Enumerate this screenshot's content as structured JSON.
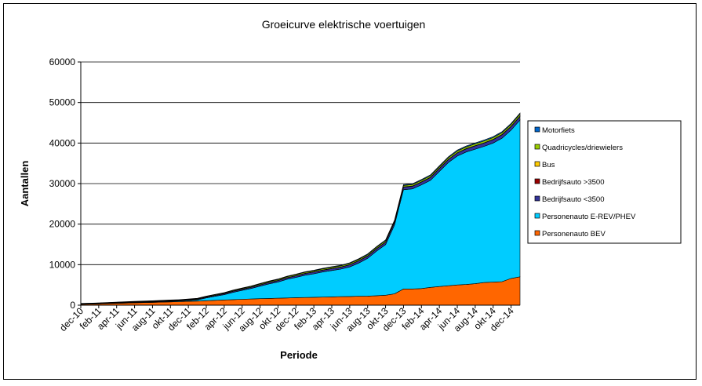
{
  "chart_data": {
    "type": "area",
    "stacked": true,
    "title": "Groeicurve elektrische voertuigen",
    "xlabel": "Periode",
    "ylabel": "Aantallen",
    "ylim": [
      0,
      60000
    ],
    "yticks": [
      0,
      10000,
      20000,
      30000,
      40000,
      50000,
      60000
    ],
    "grid": "horizontal",
    "legend_position": "right",
    "x_tick_labels": [
      "dec-10",
      "feb-11",
      "apr-11",
      "jun-11",
      "aug-11",
      "okt-11",
      "dec-11",
      "feb-12",
      "apr-12",
      "jun-12",
      "aug-12",
      "okt-12",
      "dec-12",
      "feb-13",
      "apr-13",
      "jun-13",
      "aug-13",
      "okt-13",
      "dec-13",
      "feb-14",
      "apr-14",
      "jun-14",
      "aug-14",
      "okt-14",
      "dec-14"
    ],
    "categories": [
      "dec-10",
      "jan-11",
      "feb-11",
      "mrt-11",
      "apr-11",
      "mei-11",
      "jun-11",
      "jul-11",
      "aug-11",
      "sep-11",
      "okt-11",
      "nov-11",
      "dec-11",
      "jan-12",
      "feb-12",
      "mrt-12",
      "apr-12",
      "mei-12",
      "jun-12",
      "jul-12",
      "aug-12",
      "sep-12",
      "okt-12",
      "nov-12",
      "dec-12",
      "jan-13",
      "feb-13",
      "mrt-13",
      "apr-13",
      "mei-13",
      "jun-13",
      "jul-13",
      "aug-13",
      "sep-13",
      "okt-13",
      "nov-13",
      "dec-13",
      "jan-14",
      "feb-14",
      "mrt-14",
      "apr-14",
      "mei-14",
      "jun-14",
      "jul-14",
      "aug-14",
      "sep-14",
      "okt-14",
      "nov-14",
      "dec-14",
      "jan-15"
    ],
    "series": [
      {
        "name": "Personenauto BEV",
        "color": "#ff6600",
        "values": [
          200,
          250,
          300,
          380,
          450,
          520,
          580,
          640,
          700,
          760,
          820,
          880,
          940,
          1000,
          1100,
          1200,
          1300,
          1380,
          1450,
          1520,
          1600,
          1660,
          1720,
          1780,
          1850,
          1900,
          1950,
          2000,
          2050,
          2100,
          2150,
          2200,
          2250,
          2350,
          2450,
          2800,
          4000,
          4000,
          4100,
          4400,
          4600,
          4800,
          5000,
          5100,
          5300,
          5600,
          5700,
          5800,
          6600,
          7000
        ]
      },
      {
        "name": "Personenauto E-REV/PHEV",
        "color": "#00ccff",
        "values": [
          50,
          50,
          60,
          60,
          70,
          80,
          90,
          100,
          110,
          120,
          130,
          150,
          200,
          300,
          700,
          1000,
          1300,
          1800,
          2200,
          2600,
          3100,
          3600,
          4000,
          4600,
          5000,
          5500,
          5800,
          6200,
          6500,
          6800,
          7300,
          8200,
          9300,
          11000,
          12500,
          17000,
          24500,
          24700,
          25600,
          26400,
          28400,
          30400,
          31800,
          32700,
          33200,
          33600,
          34300,
          35400,
          36600,
          38700
        ]
      },
      {
        "name": "Bedrijfsauto <3500",
        "color": "#333399",
        "values": [
          80,
          80,
          90,
          90,
          100,
          100,
          110,
          120,
          120,
          130,
          140,
          150,
          160,
          170,
          200,
          220,
          240,
          260,
          280,
          300,
          320,
          340,
          360,
          380,
          400,
          420,
          440,
          460,
          480,
          500,
          520,
          540,
          560,
          580,
          600,
          620,
          640,
          660,
          680,
          700,
          720,
          740,
          760,
          780,
          800,
          820,
          840,
          860,
          880,
          900
        ]
      },
      {
        "name": "Bedrijfsauto >3500",
        "color": "#990000",
        "values": [
          10,
          10,
          10,
          10,
          10,
          10,
          10,
          10,
          10,
          10,
          10,
          10,
          10,
          10,
          10,
          10,
          10,
          10,
          10,
          10,
          10,
          10,
          10,
          10,
          10,
          10,
          10,
          10,
          10,
          10,
          10,
          10,
          10,
          10,
          10,
          10,
          10,
          10,
          10,
          10,
          10,
          10,
          10,
          10,
          10,
          10,
          10,
          10,
          10,
          10
        ]
      },
      {
        "name": "Bus",
        "color": "#ffcc00",
        "values": [
          10,
          10,
          10,
          10,
          10,
          10,
          10,
          10,
          10,
          10,
          10,
          10,
          10,
          10,
          10,
          10,
          10,
          10,
          10,
          10,
          10,
          20,
          20,
          20,
          20,
          20,
          20,
          20,
          20,
          20,
          30,
          30,
          30,
          30,
          30,
          30,
          30,
          30,
          30,
          30,
          40,
          40,
          40,
          40,
          40,
          40,
          40,
          40,
          40,
          50
        ]
      },
      {
        "name": "Quadricycles/driewielers",
        "color": "#99cc00",
        "values": [
          60,
          60,
          70,
          70,
          80,
          80,
          90,
          90,
          100,
          100,
          110,
          110,
          120,
          130,
          140,
          150,
          160,
          170,
          180,
          190,
          200,
          210,
          220,
          230,
          240,
          250,
          260,
          270,
          280,
          290,
          300,
          310,
          320,
          330,
          340,
          350,
          360,
          370,
          380,
          390,
          400,
          410,
          420,
          430,
          440,
          450,
          460,
          470,
          480,
          500
        ]
      },
      {
        "name": "Motorfiets",
        "color": "#0066cc",
        "values": [
          40,
          40,
          40,
          50,
          50,
          50,
          60,
          60,
          60,
          70,
          70,
          70,
          80,
          80,
          90,
          90,
          100,
          100,
          110,
          110,
          120,
          120,
          130,
          130,
          140,
          140,
          150,
          150,
          160,
          160,
          170,
          170,
          180,
          180,
          190,
          190,
          200,
          200,
          210,
          210,
          220,
          220,
          230,
          230,
          240,
          240,
          250,
          250,
          260,
          260
        ]
      }
    ]
  }
}
